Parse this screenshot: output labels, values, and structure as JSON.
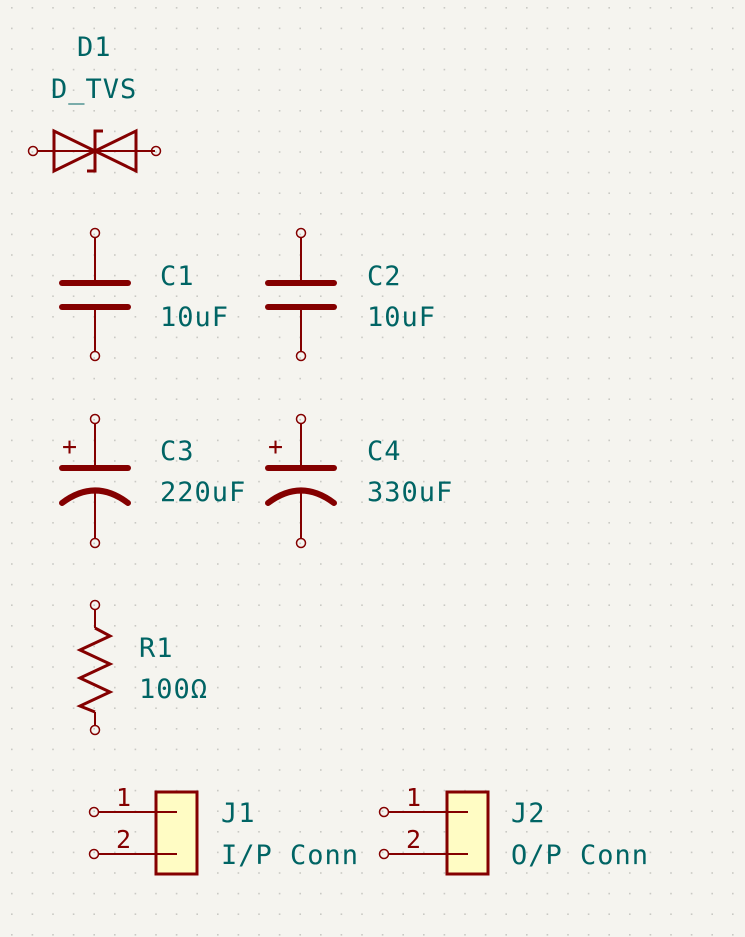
{
  "schematic": {
    "background": "#f5f4ef",
    "grid_color": "#c9c9c4",
    "symbol_color": "#840000",
    "text_color": "#006464",
    "connector_fill": "#fffcc4",
    "components": {
      "d1": {
        "ref": "D1",
        "value": "D_TVS",
        "type": "tvs-diode"
      },
      "c1": {
        "ref": "C1",
        "value": "10uF",
        "type": "capacitor"
      },
      "c2": {
        "ref": "C2",
        "value": "10uF",
        "type": "capacitor"
      },
      "c3": {
        "ref": "C3",
        "value": "220uF",
        "type": "polarized-capacitor",
        "polarity_mark": "+"
      },
      "c4": {
        "ref": "C4",
        "value": "330uF",
        "type": "polarized-capacitor",
        "polarity_mark": "+"
      },
      "r1": {
        "ref": "R1",
        "value": "100Ω",
        "type": "resistor"
      },
      "j1": {
        "ref": "J1",
        "value": "I/P Conn",
        "type": "connector-2pin",
        "pins": [
          "1",
          "2"
        ]
      },
      "j2": {
        "ref": "J2",
        "value": "O/P Conn",
        "type": "connector-2pin",
        "pins": [
          "1",
          "2"
        ]
      }
    }
  }
}
